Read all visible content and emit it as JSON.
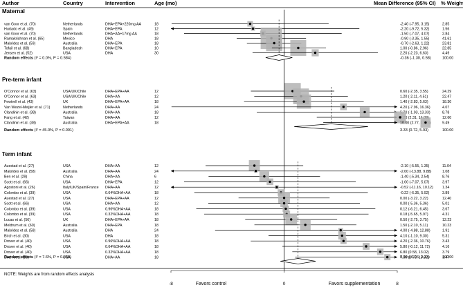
{
  "headers": {
    "author": "Author",
    "country": "Country",
    "intervention": "Intervention",
    "age": "Age (mo)",
    "md": "Mean Difference (95% CI)",
    "weight": "% Weight"
  },
  "chart_data": {
    "type": "forest",
    "x_axis": {
      "min": -8,
      "max": 8,
      "ticks": [
        -8,
        0,
        8
      ],
      "null_line": 0
    },
    "x_labels": {
      "left": "Favors control",
      "right": "Favors supplementation"
    },
    "footnote": "NOTE: Weights are from random effects analysis",
    "groups": [
      {
        "title": "Maternal",
        "studies": [
          {
            "author": "van Goor et al. (70)",
            "country": "Netherlands",
            "intervention": "DHA+EPA+220mg AA",
            "age": "18",
            "md": -2.4,
            "lo": -7.95,
            "hi": 3.15,
            "ci": "-2.40 (-7.95, 3.15)",
            "weight": "2.85"
          },
          {
            "author": "Hurtado et al. (49)",
            "country": "Spain",
            "intervention": "DHA+EPA",
            "age": "12",
            "md": -2.2,
            "lo": -9.72,
            "hi": 5.32,
            "ci": "-2.20 (-9.72, 5.32)",
            "weight": "1.56"
          },
          {
            "author": "van Goor et al. (70)",
            "country": "Netherlands",
            "intervention": "DHA+AA+17mg AA",
            "age": "18",
            "md": -1.5,
            "lo": -7.07,
            "hi": 4.07,
            "ci": "-1.50 (-7.07, 4.07)",
            "weight": "2.84"
          },
          {
            "author": "Ramakrishnan et al. (65)",
            "country": "Mexico",
            "intervention": "DHA",
            "age": "18",
            "md": -0.9,
            "lo": -3.35,
            "hi": 1.55,
            "ci": "-0.90 (-3.35, 1.55)",
            "weight": "41.61"
          },
          {
            "author": "Makrides et al. (59)",
            "country": "Australia",
            "intervention": "DHA+EPA",
            "age": "18",
            "md": -0.7,
            "lo": -2.63,
            "hi": 1.22,
            "ci": "-0.70 (-2.63, 1.22)",
            "weight": "23.81"
          },
          {
            "author": "Tofail et al. (68)",
            "country": "Bangladesh",
            "intervention": "DHA+EPA",
            "age": "10",
            "md": 1.0,
            "lo": -0.86,
            "hi": 2.96,
            "ci": "1.00 (-0.86, 2.96)",
            "weight": "22.85"
          },
          {
            "author": "Jensen et al. (52)",
            "country": "USA",
            "intervention": "DHA",
            "age": "30",
            "md": 2.2,
            "lo": -2.23,
            "hi": 6.63,
            "ci": "2.20 (-2.23, 6.63)",
            "weight": "4.49"
          }
        ],
        "pooled": {
          "label": "Random effects",
          "stats": "(I² = 0.0%, P = 0.584)",
          "md": -0.36,
          "lo": -1.3,
          "hi": 0.58,
          "ci": "-0.36 (-1.30, 0.58)",
          "weight": "100.00"
        }
      },
      {
        "title": "Pre-term infant",
        "studies": [
          {
            "author": "O'Connor et al. (63)",
            "country": "USA/UK/Chile",
            "intervention": "DHA+EPA+AA",
            "age": "12",
            "md": 0.6,
            "lo": -2.35,
            "hi": 3.55,
            "ci": "0.60 (-2.35, 3.55)",
            "weight": "24.29"
          },
          {
            "author": "O'Connor et al. (63)",
            "country": "USA/UK/Chile",
            "intervention": "DHA+AA",
            "age": "12",
            "md": 1.2,
            "lo": -2.11,
            "hi": 4.51,
            "ci": "1.20 (-2.11, 4.51)",
            "weight": "22.47"
          },
          {
            "author": "Fewtrell et al. (43)",
            "country": "UK",
            "intervention": "DHA+EPA+AA",
            "age": "18",
            "md": 1.4,
            "lo": -2.83,
            "hi": 5.63,
            "ci": "1.40 (-2.83, 5.63)",
            "weight": "18.30"
          },
          {
            "author": "Van Wezel-Meijler et al. (71)",
            "country": "Netherlands",
            "intervention": "DHA+AA",
            "age": "24",
            "md": 4.2,
            "lo": -7.96,
            "hi": 16.36,
            "ci": "4.20 (-7.96, 16.36)",
            "weight": "4.07"
          },
          {
            "author": "Clandinin et al. (38)",
            "country": "Australia",
            "intervention": "DHA+AA",
            "age": "18",
            "md": 5.7,
            "lo": -1.93,
            "hi": 13.33,
            "ci": "5.70 (-1.93, 13.33)",
            "weight": "8.78"
          },
          {
            "author": "Fang et al. (42)",
            "country": "Taiwan",
            "intervention": "DHA+AA",
            "age": "12",
            "md": 8.2,
            "lo": 2.31,
            "hi": 14.09,
            "ci": "8.20 (2.31, 14.09)",
            "weight": "12.60"
          },
          {
            "author": "Clandinin et al. (38)",
            "country": "Australia",
            "intervention": "DHA+EPA+AA",
            "age": "18",
            "md": 10.0,
            "lo": 2.77,
            "hi": 17.23,
            "ci": "10.00 (2.77, 17.23)",
            "weight": "9.49"
          }
        ],
        "pooled": {
          "label": "Random effects",
          "stats": "(I² = 45.0%, P = 0.091)",
          "md": 3.33,
          "lo": 0.72,
          "hi": 5.93,
          "ci": "3.33 (0.72, 5.93)",
          "weight": "100.00"
        }
      },
      {
        "title": "Term infant",
        "studies": [
          {
            "author": "Auestad et al. (27)",
            "country": "USA",
            "intervention": "DHA+AA",
            "age": "12",
            "md": -2.1,
            "lo": -5.55,
            "hi": 1.35,
            "ci": "-2.10 (-5.55, 1.35)",
            "weight": "11.04"
          },
          {
            "author": "Makrides et al. (58)",
            "country": "Australia",
            "intervention": "DHA+AA",
            "age": "24",
            "md": -2.0,
            "lo": -13.88,
            "hi": 9.88,
            "ci": "-2.00 (-13.88, 9.88)",
            "weight": "1.08"
          },
          {
            "author": "Ben et al. (29)",
            "country": "China",
            "intervention": "DHA+AA",
            "age": "6",
            "md": -1.4,
            "lo": -5.34,
            "hi": 2.54,
            "ci": "-1.40 (-5.34, 2.54)",
            "weight": "8.76"
          },
          {
            "author": "Scott et al. (66)",
            "country": "USA",
            "intervention": "DHA+EPA",
            "age": "12",
            "md": -1.0,
            "lo": -7.07,
            "hi": 5.07,
            "ci": "-1.00 (-7.07, 5.07)",
            "weight": "3.97"
          },
          {
            "author": "Agostoni et al. (26)",
            "country": "Italy/UK/Spain/France",
            "intervention": "DHA+AA",
            "age": "12",
            "md": -0.52,
            "lo": -11.16,
            "hi": 10.12,
            "ci": "-0.52 (-11.16, 10.12)",
            "weight": "1.34"
          },
          {
            "author": "Colombo et al. (39)",
            "country": "USA",
            "intervention": "0.64%DHA+AA",
            "age": "18",
            "md": -0.22,
            "lo": -6.35,
            "hi": 5.92,
            "ci": "-0.22 (-6.35, 5.92)",
            "weight": "3.89"
          },
          {
            "author": "Auestad et al. (27)",
            "country": "USA",
            "intervention": "DHA+EPA+AA",
            "age": "12",
            "md": 0.0,
            "lo": -3.22,
            "hi": 3.22,
            "ci": "0.00 (-3.22, 3.22)",
            "weight": "12.40"
          },
          {
            "author": "Scott et al. (66)",
            "country": "USA",
            "intervention": "DHA+AA",
            "age": "12",
            "md": 0.0,
            "lo": -5.36,
            "hi": 5.36,
            "ci": "0.00 (-5.36, 5.36)",
            "weight": "5.01"
          },
          {
            "author": "Colombo et al. (39)",
            "country": "USA",
            "intervention": "0.96%DHA+AA",
            "age": "18",
            "md": 0.12,
            "lo": -6.21,
            "hi": 6.45,
            "ci": "0.12 (-6.21, 6.45)",
            "weight": "3.67"
          },
          {
            "author": "Colombo et al. (39)",
            "country": "USA",
            "intervention": "0.32%DHA+AA",
            "age": "18",
            "md": 0.18,
            "lo": -5.65,
            "hi": 5.97,
            "ci": "0.18 (-5.65, 5.97)",
            "weight": "4.31"
          },
          {
            "author": "Lucas et al. (56)",
            "country": "UK",
            "intervention": "DHA+EPA+AA",
            "age": "18",
            "md": 0.5,
            "lo": -2.75,
            "hi": 3.75,
            "ci": "0.50 (-2.75, 3.75)",
            "weight": "12.23"
          },
          {
            "author": "Meldrum et al. (60)",
            "country": "Australia",
            "intervention": "DHA+EPA",
            "age": "18",
            "md": 1.5,
            "lo": -2.1,
            "hi": 5.11,
            "ci": "1.50 (-2.10, 5.11)",
            "weight": "10.23"
          },
          {
            "author": "Makrides et al. (58)",
            "country": "Australia",
            "intervention": "DHA",
            "age": "24",
            "md": 4.0,
            "lo": -4.88,
            "hi": 12.88,
            "ci": "4.00 (-4.88, 12.88)",
            "weight": "1.91"
          },
          {
            "author": "Birch et al. (30)",
            "country": "USA",
            "intervention": "DHA",
            "age": "18",
            "md": 4.1,
            "lo": -1.1,
            "hi": 9.3,
            "ci": "4.10 (-1.10, 9.30)",
            "weight": "5.31"
          },
          {
            "author": "Drover et al. (40)",
            "country": "USA",
            "intervention": "0.96%DHA+AA",
            "age": "18",
            "md": 4.2,
            "lo": -2.36,
            "hi": 10.76,
            "ci": "4.20 (-2.36, 10.76)",
            "weight": "3.43"
          },
          {
            "author": "Drover et al. (40)",
            "country": "USA",
            "intervention": "0.64%DHA+AA",
            "age": "18",
            "md": 5.8,
            "lo": -0.12,
            "hi": 11.72,
            "ci": "5.80 (-0.12, 11.72)",
            "weight": "4.16"
          },
          {
            "author": "Drover et al. (40)",
            "country": "USA",
            "intervention": "0.32%DHA+AA",
            "age": "18",
            "md": 6.8,
            "lo": 0.58,
            "hi": 13.02,
            "ci": "6.80 (0.58, 13.02)",
            "weight": "3.79"
          },
          {
            "author": "Birch et al. (30)",
            "country": "USA",
            "intervention": "DHA+AA",
            "age": "18",
            "md": 7.3,
            "lo": 0.78,
            "hi": 13.82,
            "ci": "7.30 (0.78, 13.82)",
            "weight": "3.47"
          }
        ],
        "pooled": {
          "label": "Random effects",
          "stats": "(I² = 7.6%, P = 0.365)",
          "md": 0.99,
          "lo": -0.26,
          "hi": 2.23,
          "ci": "0.99 (-0.26, 2.23)",
          "weight": "100.00"
        }
      }
    ]
  }
}
